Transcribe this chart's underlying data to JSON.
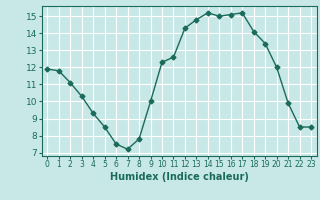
{
  "x": [
    0,
    1,
    2,
    3,
    4,
    5,
    6,
    7,
    8,
    9,
    10,
    11,
    12,
    13,
    14,
    15,
    16,
    17,
    18,
    19,
    20,
    21,
    22,
    23
  ],
  "y": [
    11.9,
    11.8,
    11.1,
    10.3,
    9.3,
    8.5,
    7.5,
    7.2,
    7.8,
    10.0,
    12.3,
    12.6,
    14.3,
    14.8,
    15.2,
    15.0,
    15.1,
    15.2,
    14.1,
    13.4,
    12.0,
    9.9,
    8.5,
    8.5
  ],
  "line_color": "#1a6b5a",
  "marker": "D",
  "markersize": 2.5,
  "linewidth": 1.0,
  "xlim": [
    -0.5,
    23.5
  ],
  "ylim": [
    6.8,
    15.6
  ],
  "yticks": [
    7,
    8,
    9,
    10,
    11,
    12,
    13,
    14,
    15
  ],
  "xticks": [
    0,
    1,
    2,
    3,
    4,
    5,
    6,
    7,
    8,
    9,
    10,
    11,
    12,
    13,
    14,
    15,
    16,
    17,
    18,
    19,
    20,
    21,
    22,
    23
  ],
  "xlabel": "Humidex (Indice chaleur)",
  "background_color": "#c8e8e8",
  "grid_color": "#ffffff",
  "tick_color": "#1a6b5a",
  "label_color": "#1a6b5a",
  "xlabel_fontsize": 7,
  "ytick_fontsize": 6.5,
  "xtick_fontsize": 5.5
}
